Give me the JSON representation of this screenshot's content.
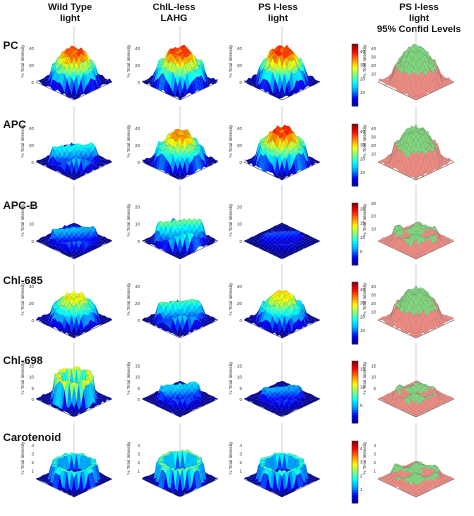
{
  "columns": [
    {
      "line1": "Wild Type",
      "line2": "light",
      "line3": ""
    },
    {
      "line1": "ChlL-less",
      "line2": "LAHG",
      "line3": ""
    },
    {
      "line1": "PS I-less",
      "line2": "light",
      "line3": ""
    },
    {
      "line1": "PS I-less",
      "line2": "light",
      "line3": "95% Confid Levels"
    }
  ],
  "rows": [
    "PC",
    "APC",
    "APC-B",
    "Chl-685",
    "Chl-698",
    "Carotenoid"
  ],
  "zlabel": "% Total Intensity",
  "colors": {
    "jet": [
      "#00008f",
      "#0000ff",
      "#00a0ff",
      "#00ffff",
      "#80ff80",
      "#ffff00",
      "#ff8000",
      "#ff0000",
      "#800000"
    ],
    "confid_high": "#7fd87f",
    "confid_low": "#f08a80",
    "floor_grid": "#b0b0b0"
  },
  "chart_data": {
    "type": "surface",
    "description_free": true,
    "colorbars": [
      {
        "row": "PC",
        "ticks": [
          "40",
          "30",
          "20",
          "10"
        ],
        "range": [
          0,
          45
        ]
      },
      {
        "row": "APC",
        "ticks": [
          "40",
          "30",
          "20",
          "10"
        ],
        "range": [
          0,
          45
        ]
      },
      {
        "row": "APC-B",
        "ticks": [
          "20",
          "15",
          "10",
          "5"
        ],
        "range": [
          0,
          22
        ]
      },
      {
        "row": "Chl-685",
        "ticks": [
          "40",
          "30",
          "20",
          "10"
        ],
        "range": [
          0,
          45
        ]
      },
      {
        "row": "Chl-698",
        "ticks": [
          "15",
          "10",
          "5"
        ],
        "range": [
          0,
          17
        ]
      },
      {
        "row": "Carotenoid",
        "ticks": [
          "4",
          "3",
          "2",
          "1"
        ],
        "range": [
          0,
          4.5
        ]
      }
    ],
    "panels": [
      {
        "row": "PC",
        "col": 0,
        "zticks": [
          "40",
          "20",
          "0"
        ],
        "zmax": 45,
        "level": 0.78,
        "shape": "ring",
        "spread": 0.8
      },
      {
        "row": "PC",
        "col": 1,
        "zticks": [
          "40",
          "20",
          "0"
        ],
        "zmax": 45,
        "level": 0.8,
        "shape": "ring",
        "spread": 0.85
      },
      {
        "row": "PC",
        "col": 2,
        "zticks": [
          "40",
          "20",
          "0"
        ],
        "zmax": 45,
        "level": 0.82,
        "shape": "ring",
        "spread": 0.8
      },
      {
        "row": "PC",
        "col": 3,
        "zticks": [
          "40",
          "30",
          "20",
          "10"
        ],
        "zmax": 45,
        "level": 0.8,
        "shape": "confid",
        "spread": 0.8
      },
      {
        "row": "APC",
        "col": 0,
        "zticks": [
          "40",
          "20",
          "0"
        ],
        "zmax": 45,
        "level": 0.4,
        "shape": "flat",
        "spread": 0.8
      },
      {
        "row": "APC",
        "col": 1,
        "zticks": [
          "40",
          "20",
          "0"
        ],
        "zmax": 45,
        "level": 0.72,
        "shape": "ring",
        "spread": 0.85
      },
      {
        "row": "APC",
        "col": 2,
        "zticks": [
          "40",
          "20",
          "0"
        ],
        "zmax": 45,
        "level": 0.82,
        "shape": "ring",
        "spread": 0.85
      },
      {
        "row": "APC",
        "col": 3,
        "zticks": [
          "40",
          "30",
          "20",
          "10"
        ],
        "zmax": 45,
        "level": 0.8,
        "shape": "confid",
        "spread": 0.8
      },
      {
        "row": "APC-B",
        "col": 0,
        "zticks": [
          "20",
          "10",
          "0"
        ],
        "zmax": 22,
        "level": 0.3,
        "shape": "flat",
        "spread": 0.8
      },
      {
        "row": "APC-B",
        "col": 1,
        "zticks": [
          "20",
          "10",
          "0"
        ],
        "zmax": 22,
        "level": 0.5,
        "shape": "flat",
        "spread": 0.85
      },
      {
        "row": "APC-B",
        "col": 2,
        "zticks": [
          "20",
          "10",
          "0"
        ],
        "zmax": 22,
        "level": 0.18,
        "shape": "flat",
        "spread": 0.7
      },
      {
        "row": "APC-B",
        "col": 3,
        "zticks": [
          "30",
          "20",
          "10"
        ],
        "zmax": 30,
        "level": 0.35,
        "shape": "confid-low",
        "spread": 0.8
      },
      {
        "row": "Chl-685",
        "col": 0,
        "zticks": [
          "40",
          "20",
          "0"
        ],
        "zmax": 45,
        "level": 0.62,
        "shape": "ring",
        "spread": 0.8
      },
      {
        "row": "Chl-685",
        "col": 1,
        "zticks": [
          "40",
          "20",
          "0"
        ],
        "zmax": 45,
        "level": 0.45,
        "shape": "flat",
        "spread": 0.8
      },
      {
        "row": "Chl-685",
        "col": 2,
        "zticks": [
          "40",
          "20",
          "0"
        ],
        "zmax": 45,
        "level": 0.62,
        "shape": "ring",
        "spread": 0.8
      },
      {
        "row": "Chl-685",
        "col": 3,
        "zticks": [
          "40",
          "30",
          "20",
          "10"
        ],
        "zmax": 45,
        "level": 0.72,
        "shape": "confid",
        "spread": 0.8
      },
      {
        "row": "Chl-698",
        "col": 0,
        "zticks": [
          "15",
          "10",
          "5",
          "0"
        ],
        "zmax": 17,
        "level": 0.6,
        "shape": "crown",
        "spread": 0.75
      },
      {
        "row": "Chl-698",
        "col": 1,
        "zticks": [
          "15",
          "10",
          "5",
          "0"
        ],
        "zmax": 17,
        "level": 0.35,
        "shape": "flat",
        "spread": 0.7
      },
      {
        "row": "Chl-698",
        "col": 2,
        "zticks": [
          "15",
          "10",
          "5",
          "0"
        ],
        "zmax": 17,
        "level": 0.28,
        "shape": "flat",
        "spread": 0.7
      },
      {
        "row": "Chl-698",
        "col": 3,
        "zticks": [
          "15",
          "10",
          "5"
        ],
        "zmax": 17,
        "level": 0.3,
        "shape": "confid-low",
        "spread": 0.75
      },
      {
        "row": "Carotenoid",
        "col": 0,
        "zticks": [
          "4",
          "3",
          "2",
          "1"
        ],
        "zmax": 4.5,
        "level": 0.3,
        "shape": "bowl",
        "spread": 0.85
      },
      {
        "row": "Carotenoid",
        "col": 1,
        "zticks": [
          "4",
          "3",
          "2",
          "1"
        ],
        "zmax": 4.5,
        "level": 0.35,
        "shape": "bowl",
        "spread": 0.85
      },
      {
        "row": "Carotenoid",
        "col": 2,
        "zticks": [
          "4",
          "3",
          "2",
          "1"
        ],
        "zmax": 4.5,
        "level": 0.3,
        "shape": "bowl",
        "spread": 0.85
      },
      {
        "row": "Carotenoid",
        "col": 3,
        "zticks": [
          "4",
          "3",
          "2",
          "1"
        ],
        "zmax": 4.5,
        "level": 0.3,
        "shape": "confid-low",
        "spread": 0.85
      }
    ]
  }
}
